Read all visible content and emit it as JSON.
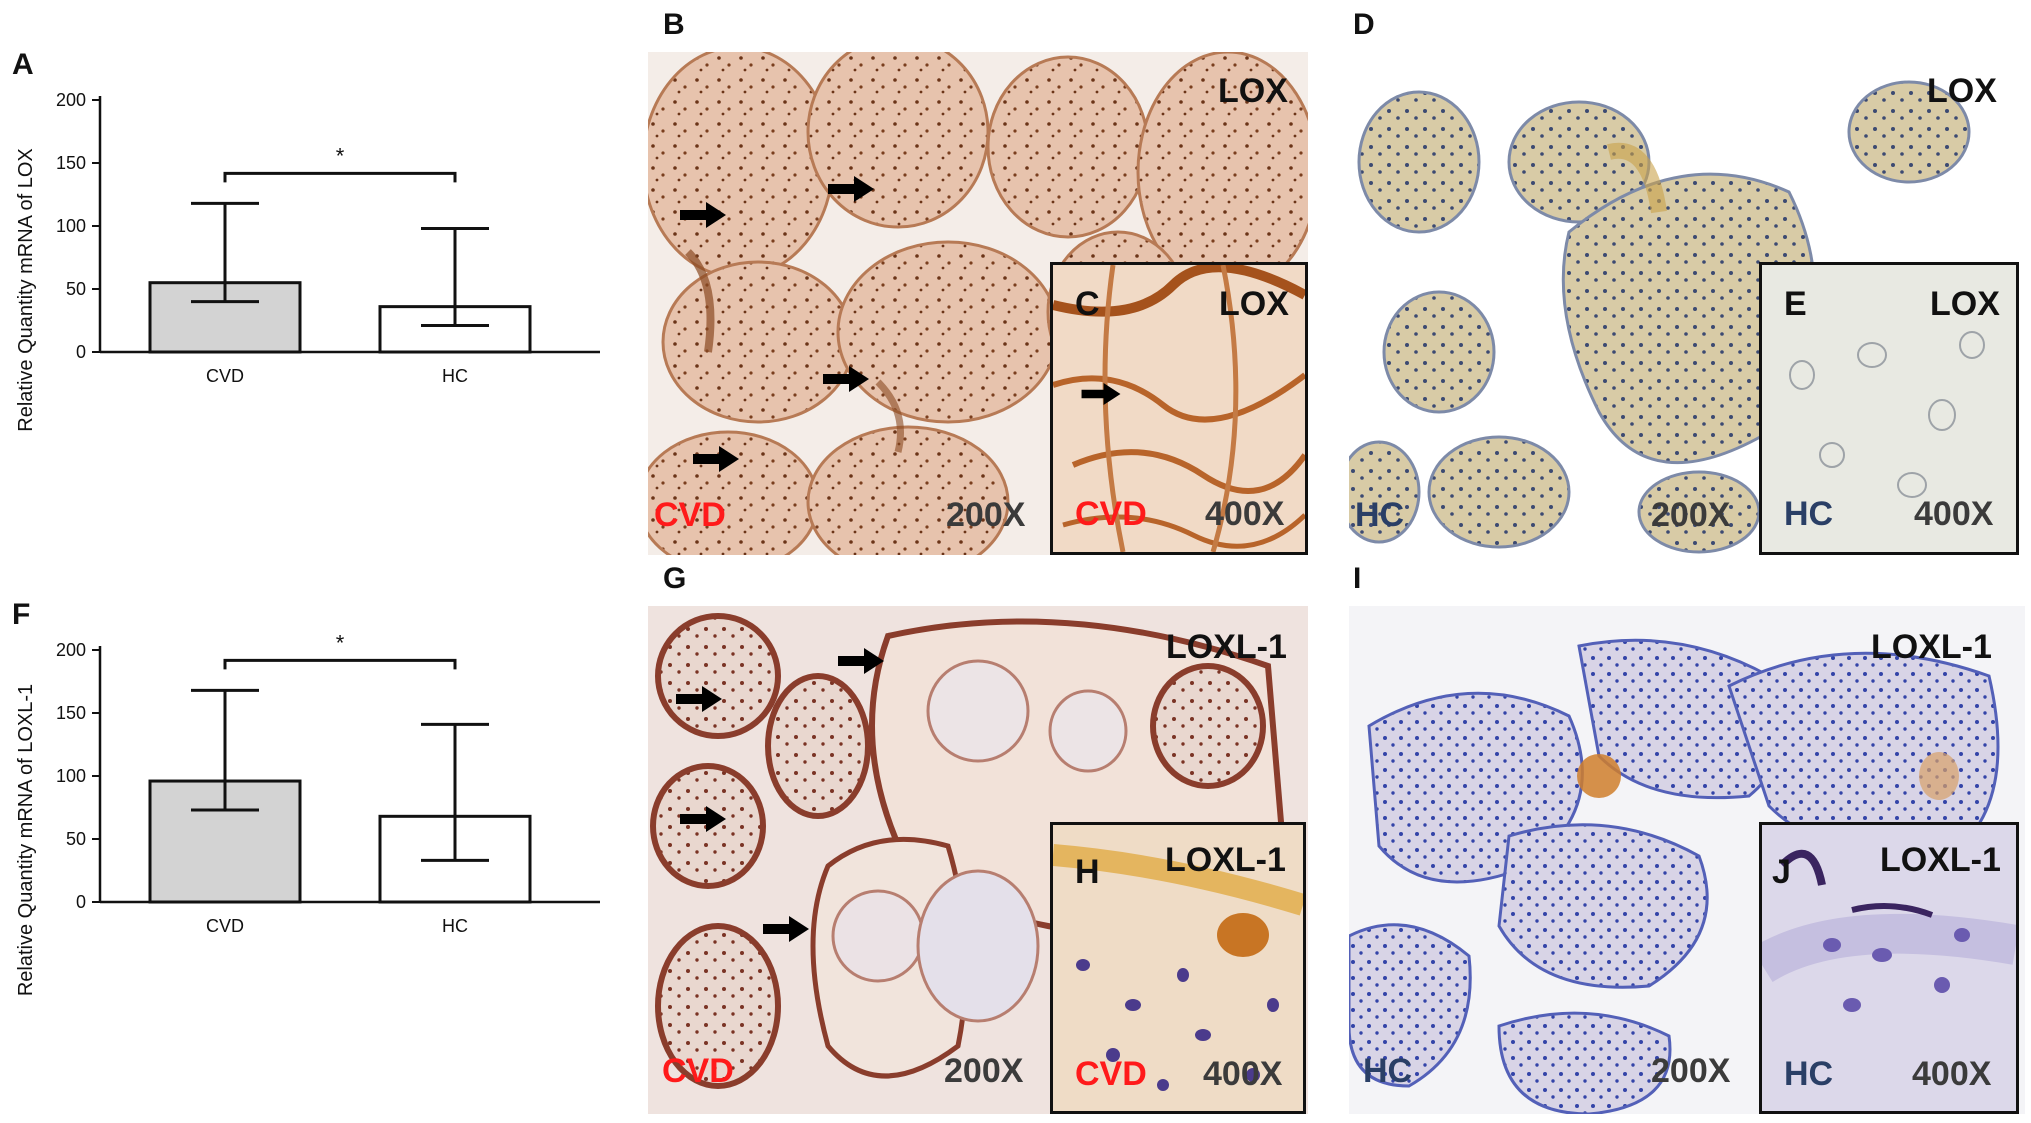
{
  "panels": {
    "A": "A",
    "B": "B",
    "C": "C",
    "D": "D",
    "E": "E",
    "F": "F",
    "G": "G",
    "H": "H",
    "I": "I",
    "J": "J"
  },
  "chart_data": [
    {
      "type": "bar",
      "panel": "A",
      "categories": [
        "CVD",
        "HC"
      ],
      "values": [
        55,
        36
      ],
      "error_upper": [
        118,
        98
      ],
      "error_lower": [
        40,
        21
      ],
      "ylabel": "Relative Quantity mRNA of LOX",
      "ylim": [
        0,
        200
      ],
      "yticks": [
        "0",
        "50",
        "100",
        "150",
        "200"
      ],
      "significance": "*",
      "bar_colors": [
        "#d3d3d3",
        "#ffffff"
      ]
    },
    {
      "type": "bar",
      "panel": "F",
      "categories": [
        "CVD",
        "HC"
      ],
      "values": [
        96,
        68
      ],
      "error_upper": [
        168,
        141
      ],
      "error_lower": [
        73,
        33
      ],
      "ylabel": "Relative Quantity mRNA of LOXL-1",
      "ylim": [
        0,
        200
      ],
      "yticks": [
        "0",
        "50",
        "100",
        "150",
        "200"
      ],
      "significance": "*",
      "bar_colors": [
        "#d3d3d3",
        "#ffffff"
      ]
    }
  ],
  "micrographs": {
    "B": {
      "marker": "LOX",
      "group": "CVD",
      "mag": "200X"
    },
    "C": {
      "marker": "LOX",
      "group": "CVD",
      "mag": "400X"
    },
    "D": {
      "marker": "LOX",
      "group": "HC",
      "mag": "200X"
    },
    "E": {
      "marker": "LOX",
      "group": "HC",
      "mag": "400X"
    },
    "G": {
      "marker": "LOXL-1",
      "group": "CVD",
      "mag": "200X"
    },
    "H": {
      "marker": "LOXL-1",
      "group": "CVD",
      "mag": "400X"
    },
    "I": {
      "marker": "LOXL-1",
      "group": "HC",
      "mag": "200X"
    },
    "J": {
      "marker": "LOXL-1",
      "group": "HC",
      "mag": "400X"
    }
  },
  "colors": {
    "cvd_label": "#ff1a1a",
    "hc_label": "#2a3f66",
    "lox_cvd_stain": "#c9895e",
    "lox_hc_stain": "#c8b58a",
    "loxl_cvd_stain": "#a05a48",
    "loxl_hc_stain": "#8e90c8"
  }
}
